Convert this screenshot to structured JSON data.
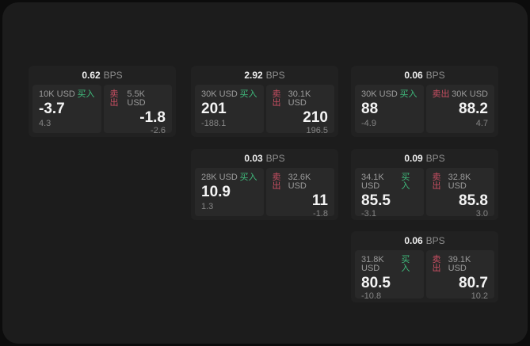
{
  "labels": {
    "bps": "BPS",
    "buy": "买入",
    "sell": "卖出"
  },
  "colors": {
    "page_bg": "#1c1c1c",
    "card_bg": "#212121",
    "panel_bg": "#292929",
    "buy_green": "#3fbd7d",
    "sell_red": "#c94f63"
  },
  "cards": [
    {
      "bps": "0.62",
      "buy": {
        "size": "10K USD",
        "price": "-3.7",
        "delta": "4.3"
      },
      "sell": {
        "size": "5.5K USD",
        "price": "-1.8",
        "delta": "-2.6"
      }
    },
    {
      "bps": "2.92",
      "buy": {
        "size": "30K USD",
        "price": "201",
        "delta": "-188.1"
      },
      "sell": {
        "size": "30.1K USD",
        "price": "210",
        "delta": "196.5"
      }
    },
    {
      "bps": "0.06",
      "buy": {
        "size": "30K USD",
        "price": "88",
        "delta": "-4.9"
      },
      "sell": {
        "size": "30K USD",
        "price": "88.2",
        "delta": "4.7"
      }
    },
    {
      "bps": "0.03",
      "buy": {
        "size": "28K USD",
        "price": "10.9",
        "delta": "1.3"
      },
      "sell": {
        "size": "32.6K USD",
        "price": "11",
        "delta": "-1.8"
      }
    },
    {
      "bps": "0.09",
      "buy": {
        "size": "34.1K USD",
        "price": "85.5",
        "delta": "-3.1"
      },
      "sell": {
        "size": "32.8K USD",
        "price": "85.8",
        "delta": "3.0"
      }
    },
    {
      "bps": "0.06",
      "buy": {
        "size": "31.8K USD",
        "price": "80.5",
        "delta": "-10.8"
      },
      "sell": {
        "size": "39.1K USD",
        "price": "80.7",
        "delta": "10.2"
      }
    }
  ]
}
